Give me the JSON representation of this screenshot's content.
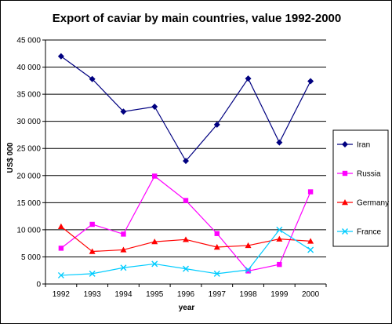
{
  "chart_data": {
    "type": "line",
    "title": "Export of caviar by main countries, value 1992-2000",
    "xlabel": "year",
    "ylabel": "US$ 000",
    "categories": [
      "1992",
      "1993",
      "1994",
      "1995",
      "1996",
      "1997",
      "1998",
      "1999",
      "2000"
    ],
    "ylim": [
      0,
      45000
    ],
    "y_ticks": [
      0,
      5000,
      10000,
      15000,
      20000,
      25000,
      30000,
      35000,
      40000,
      45000
    ],
    "y_tick_labels": [
      "0",
      "5 000",
      "10 000",
      "15 000",
      "20 000",
      "25 000",
      "30 000",
      "35 000",
      "40 000",
      "45 000"
    ],
    "grid": "horizontal",
    "legend_position": "right",
    "series": [
      {
        "name": "Iran",
        "color": "#000080",
        "marker": "diamond",
        "values": [
          42000,
          37800,
          31800,
          32700,
          22700,
          29400,
          37900,
          26100,
          37400
        ]
      },
      {
        "name": "Russia",
        "color": "#FF00FF",
        "marker": "square",
        "values": [
          6600,
          11000,
          9200,
          19900,
          15400,
          9300,
          2400,
          3600,
          17000
        ]
      },
      {
        "name": "Germany",
        "color": "#FF0000",
        "marker": "triangle",
        "values": [
          10600,
          6000,
          6300,
          7800,
          8200,
          6800,
          7100,
          8300,
          7900
        ]
      },
      {
        "name": "France",
        "color": "#00CCFF",
        "marker": "x",
        "values": [
          1600,
          1900,
          3000,
          3700,
          2800,
          1900,
          2600,
          10000,
          6300
        ]
      }
    ]
  }
}
